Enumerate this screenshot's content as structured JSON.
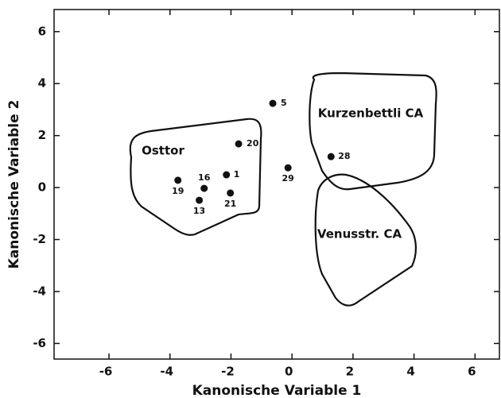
{
  "chart_data": {
    "type": "scatter",
    "x_label": "Kanonische Variable 1",
    "y_label": "Kanonische Variable 2",
    "xlim": [
      -7.8,
      6.8
    ],
    "ylim": [
      -6.6,
      6.85
    ],
    "xticks": [
      -6,
      -4,
      -2,
      0,
      2,
      4,
      6
    ],
    "yticks": [
      -6,
      -4,
      -2,
      0,
      2,
      4,
      6
    ],
    "color": "#111111",
    "points": {
      "labels": [
        "5",
        "20",
        "28",
        "29",
        "1",
        "19",
        "16",
        "21",
        "13"
      ],
      "x": [
        -0.63,
        -1.75,
        1.28,
        -0.13,
        -2.15,
        -3.74,
        -2.88,
        -2.02,
        -3.04
      ],
      "y": [
        3.24,
        1.68,
        1.19,
        0.76,
        0.49,
        0.28,
        -0.03,
        -0.21,
        -0.49
      ]
    },
    "annotations": [
      "Osttor",
      "Kurzenbettli CA",
      "Venusstr. CA"
    ]
  }
}
